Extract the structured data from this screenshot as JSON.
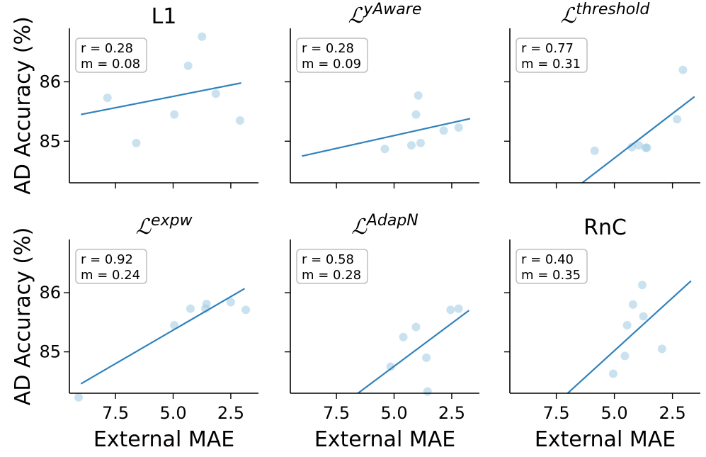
{
  "figure": {
    "ylabel": "AD Accuracy (%)",
    "xlabel": "External MAE"
  },
  "chart_data": [
    {
      "type": "scatter",
      "title": "L1",
      "title_script": false,
      "title_sup": "",
      "stats": {
        "r": "r = 0.28",
        "m": "m = 0.08"
      },
      "xlim": [
        9.5,
        1.3
      ],
      "ylim": [
        84.3,
        86.9
      ],
      "xticks": [
        {
          "value": 7.5,
          "label": "7.5"
        },
        {
          "value": 5.0,
          "label": "5.0"
        },
        {
          "value": 2.5,
          "label": "2.5"
        }
      ],
      "yticks": [
        {
          "value": 85,
          "label": "85"
        },
        {
          "value": 86,
          "label": "86"
        }
      ],
      "show_xticklabels": false,
      "show_yticklabels": true,
      "show_ylabel": true,
      "show_xlabel": false,
      "points": [
        {
          "x": 7.85,
          "y": 85.73
        },
        {
          "x": 6.6,
          "y": 84.97
        },
        {
          "x": 4.95,
          "y": 85.45
        },
        {
          "x": 4.35,
          "y": 86.27
        },
        {
          "x": 3.75,
          "y": 86.76
        },
        {
          "x": 3.15,
          "y": 85.8
        },
        {
          "x": 2.1,
          "y": 85.35
        }
      ],
      "fit": [
        {
          "x": 9.0,
          "y": 85.45
        },
        {
          "x": 2.05,
          "y": 85.98
        }
      ]
    },
    {
      "type": "scatter",
      "title": "",
      "title_script": true,
      "title_sup": "yAware",
      "stats": {
        "r": "r = 0.28",
        "m": "m = 0.09"
      },
      "xlim": [
        9.5,
        1.3
      ],
      "ylim": [
        84.3,
        86.9
      ],
      "xticks": [
        {
          "value": 7.5,
          "label": "7.5"
        },
        {
          "value": 5.0,
          "label": "5.0"
        },
        {
          "value": 2.5,
          "label": "2.5"
        }
      ],
      "yticks": [
        {
          "value": 85,
          "label": "85"
        },
        {
          "value": 86,
          "label": "86"
        }
      ],
      "show_xticklabels": false,
      "show_yticklabels": false,
      "show_ylabel": false,
      "show_xlabel": false,
      "points": [
        {
          "x": 5.4,
          "y": 84.87
        },
        {
          "x": 4.25,
          "y": 84.93
        },
        {
          "x": 4.05,
          "y": 85.45
        },
        {
          "x": 3.95,
          "y": 85.77
        },
        {
          "x": 3.85,
          "y": 84.97
        },
        {
          "x": 2.85,
          "y": 85.18
        },
        {
          "x": 2.2,
          "y": 85.23
        }
      ],
      "fit": [
        {
          "x": 9.0,
          "y": 84.75
        },
        {
          "x": 1.7,
          "y": 85.38
        }
      ]
    },
    {
      "type": "scatter",
      "title": "",
      "title_script": true,
      "title_sup": "threshold",
      "stats": {
        "r": "r = 0.77",
        "m": "m = 0.31"
      },
      "xlim": [
        9.5,
        1.3
      ],
      "ylim": [
        84.3,
        86.9
      ],
      "xticks": [
        {
          "value": 7.5,
          "label": "7.5"
        },
        {
          "value": 5.0,
          "label": "5.0"
        },
        {
          "value": 2.5,
          "label": "2.5"
        }
      ],
      "yticks": [
        {
          "value": 85,
          "label": "85"
        },
        {
          "value": 86,
          "label": "86"
        }
      ],
      "show_xticklabels": false,
      "show_yticklabels": false,
      "show_ylabel": false,
      "show_xlabel": false,
      "points": [
        {
          "x": 5.85,
          "y": 84.84
        },
        {
          "x": 4.25,
          "y": 84.9
        },
        {
          "x": 3.95,
          "y": 84.93
        },
        {
          "x": 3.65,
          "y": 84.89
        },
        {
          "x": 3.6,
          "y": 84.89
        },
        {
          "x": 2.3,
          "y": 85.37
        },
        {
          "x": 2.05,
          "y": 86.2
        }
      ],
      "fit": [
        {
          "x": 7.05,
          "y": 84.1
        },
        {
          "x": 1.55,
          "y": 85.75
        }
      ]
    },
    {
      "type": "scatter",
      "title": "",
      "title_script": true,
      "title_sup": "expw",
      "stats": {
        "r": "r = 0.92",
        "m": "m = 0.24"
      },
      "xlim": [
        9.5,
        1.3
      ],
      "ylim": [
        84.3,
        86.9
      ],
      "xticks": [
        {
          "value": 7.5,
          "label": "7.5"
        },
        {
          "value": 5.0,
          "label": "5.0"
        },
        {
          "value": 2.5,
          "label": "2.5"
        }
      ],
      "yticks": [
        {
          "value": 85,
          "label": "85"
        },
        {
          "value": 86,
          "label": "86"
        }
      ],
      "show_xticklabels": true,
      "show_yticklabels": true,
      "show_ylabel": true,
      "show_xlabel": true,
      "points": [
        {
          "x": 9.1,
          "y": 84.23
        },
        {
          "x": 4.95,
          "y": 85.45
        },
        {
          "x": 4.25,
          "y": 85.73
        },
        {
          "x": 3.6,
          "y": 85.73
        },
        {
          "x": 3.55,
          "y": 85.81
        },
        {
          "x": 2.5,
          "y": 85.84
        },
        {
          "x": 1.85,
          "y": 85.71
        }
      ],
      "fit": [
        {
          "x": 9.0,
          "y": 84.46
        },
        {
          "x": 1.9,
          "y": 86.07
        }
      ]
    },
    {
      "type": "scatter",
      "title": "",
      "title_script": true,
      "title_sup": "AdapN",
      "stats": {
        "r": "r = 0.58",
        "m": "m = 0.28"
      },
      "xlim": [
        9.5,
        1.3
      ],
      "ylim": [
        84.3,
        86.9
      ],
      "xticks": [
        {
          "value": 7.5,
          "label": "7.5"
        },
        {
          "value": 5.0,
          "label": "5.0"
        },
        {
          "value": 2.5,
          "label": "2.5"
        }
      ],
      "yticks": [
        {
          "value": 85,
          "label": "85"
        },
        {
          "value": 86,
          "label": "86"
        }
      ],
      "show_xticklabels": true,
      "show_yticklabels": false,
      "show_ylabel": false,
      "show_xlabel": true,
      "points": [
        {
          "x": 5.15,
          "y": 84.75
        },
        {
          "x": 4.6,
          "y": 85.25
        },
        {
          "x": 4.05,
          "y": 85.42
        },
        {
          "x": 3.6,
          "y": 84.9
        },
        {
          "x": 3.55,
          "y": 84.33
        },
        {
          "x": 2.55,
          "y": 85.71
        },
        {
          "x": 2.2,
          "y": 85.73
        }
      ],
      "fit": [
        {
          "x": 7.6,
          "y": 84.0
        },
        {
          "x": 1.75,
          "y": 85.7
        }
      ]
    },
    {
      "type": "scatter",
      "title": "RnC",
      "title_script": false,
      "title_sup": "",
      "stats": {
        "r": "r = 0.40",
        "m": "m = 0.35"
      },
      "xlim": [
        9.5,
        1.3
      ],
      "ylim": [
        84.3,
        86.9
      ],
      "xticks": [
        {
          "value": 7.5,
          "label": "7.5"
        },
        {
          "value": 5.0,
          "label": "5.0"
        },
        {
          "value": 2.5,
          "label": "2.5"
        }
      ],
      "yticks": [
        {
          "value": 85,
          "label": "85"
        },
        {
          "value": 86,
          "label": "86"
        }
      ],
      "show_xticklabels": true,
      "show_yticklabels": false,
      "show_ylabel": false,
      "show_xlabel": true,
      "points": [
        {
          "x": 5.05,
          "y": 84.63
        },
        {
          "x": 4.55,
          "y": 84.93
        },
        {
          "x": 4.45,
          "y": 85.45
        },
        {
          "x": 4.2,
          "y": 85.8
        },
        {
          "x": 3.8,
          "y": 86.13
        },
        {
          "x": 3.75,
          "y": 85.6
        },
        {
          "x": 2.95,
          "y": 85.05
        }
      ],
      "fit": [
        {
          "x": 7.85,
          "y": 84.0
        },
        {
          "x": 1.7,
          "y": 86.2
        }
      ]
    }
  ]
}
